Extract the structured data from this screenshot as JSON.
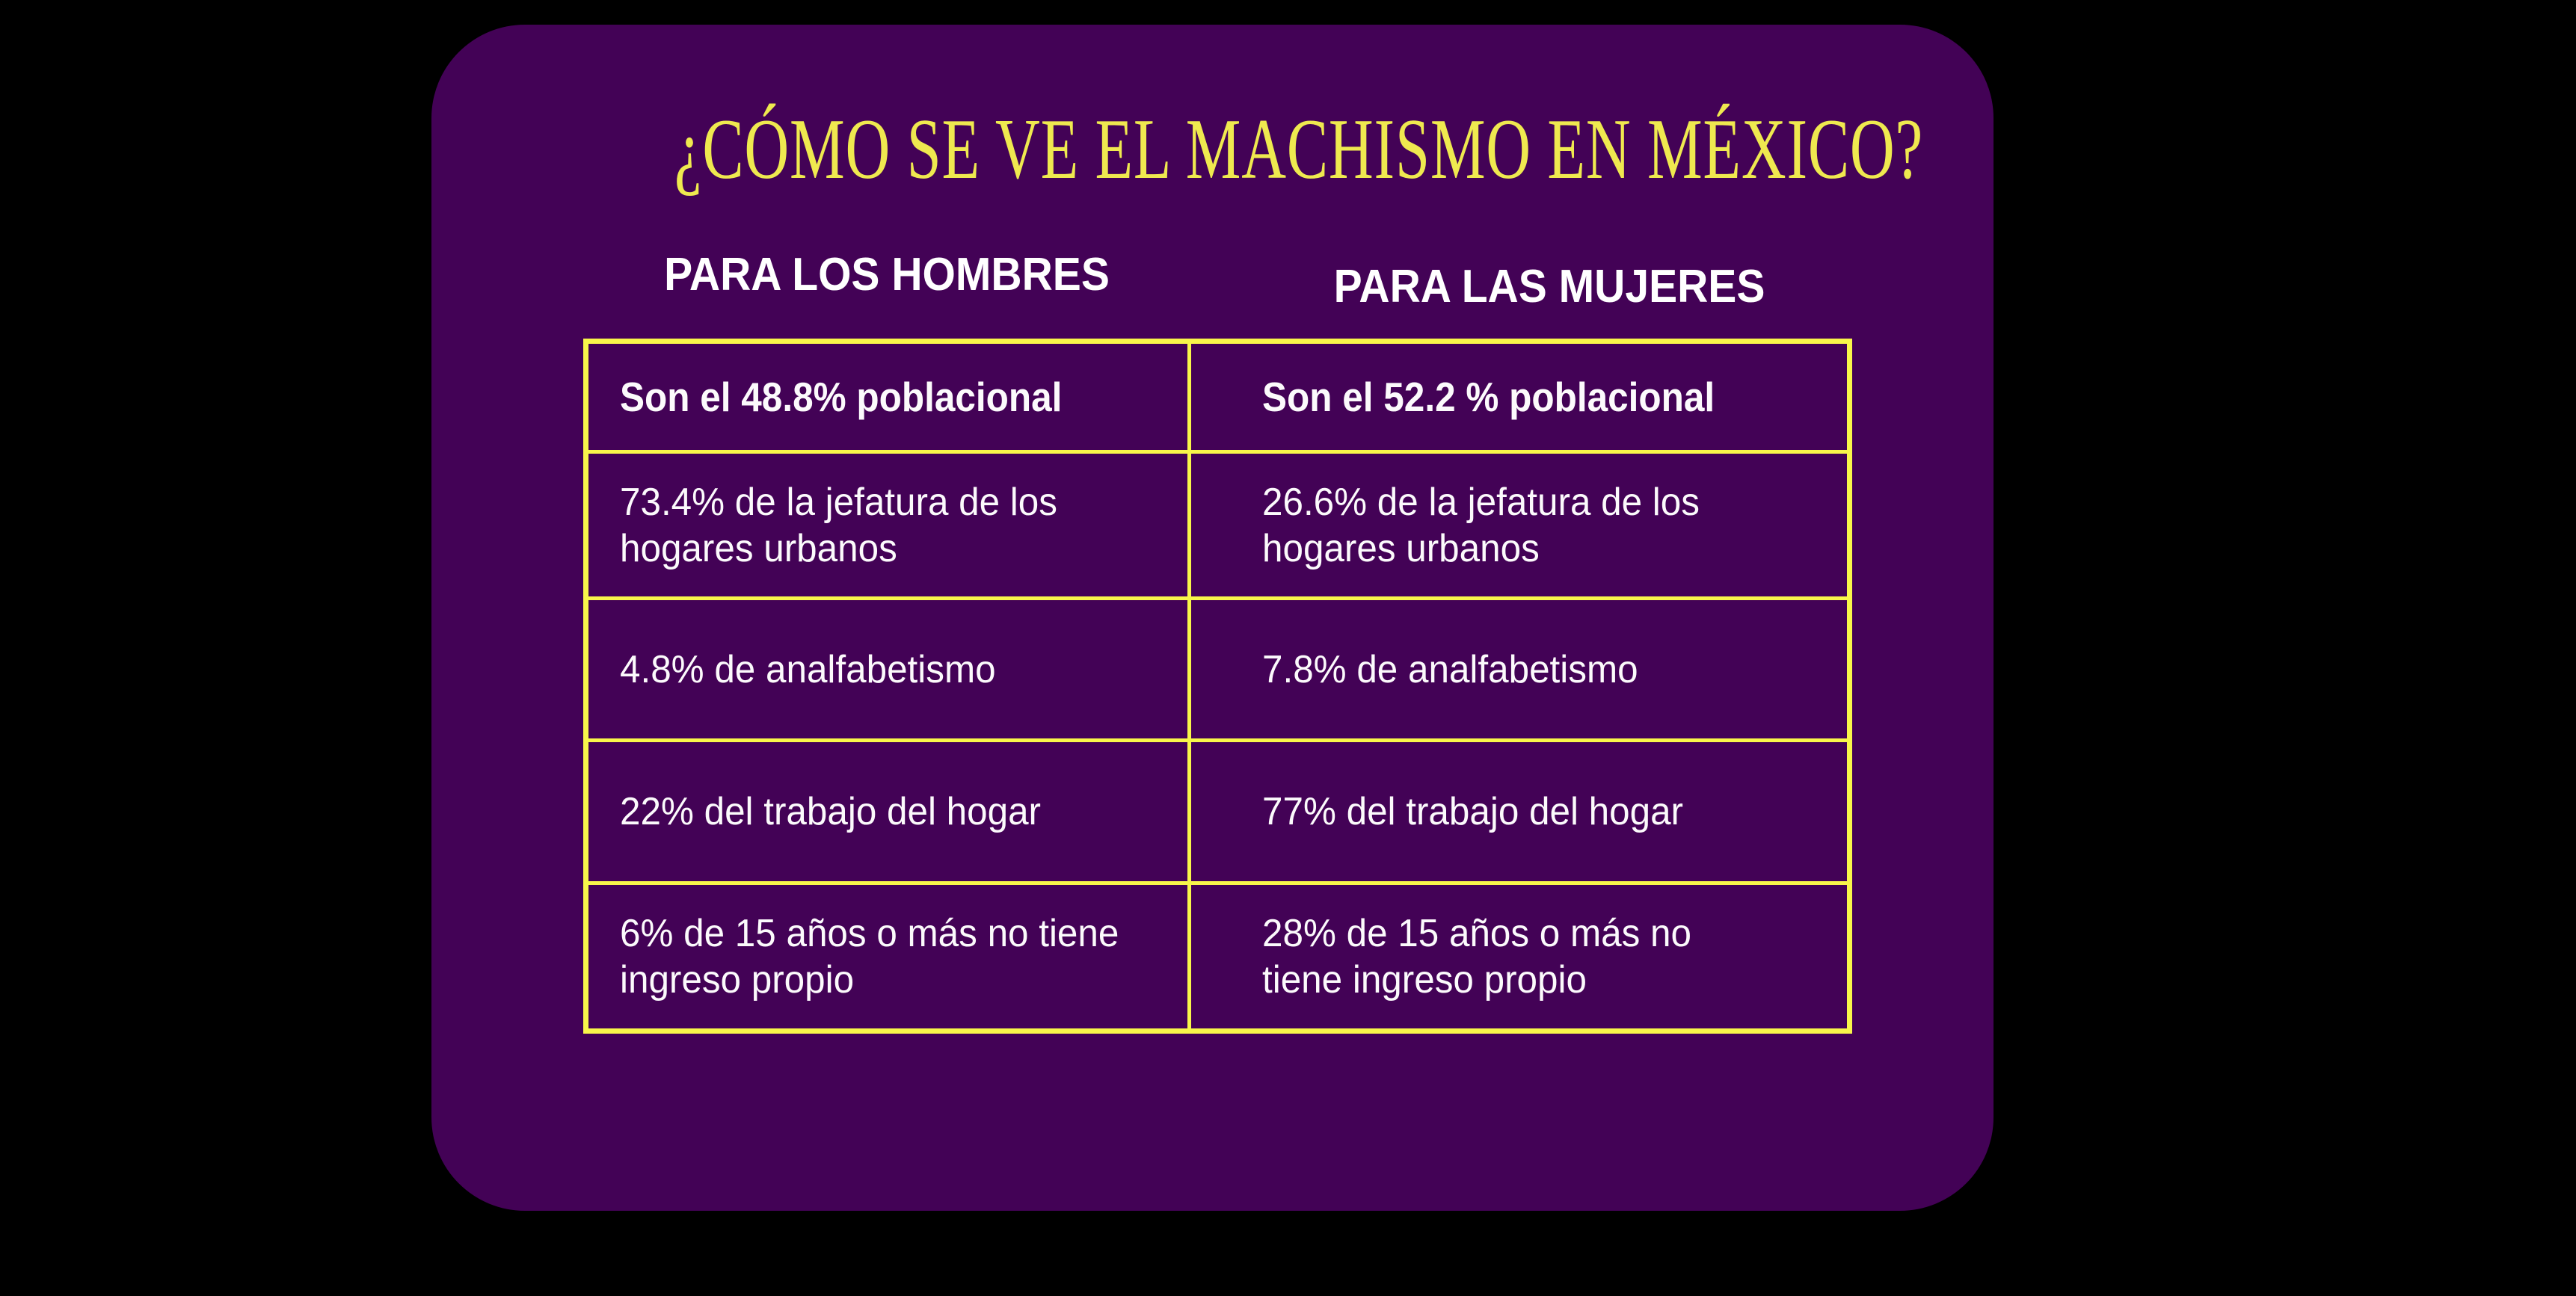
{
  "title": "¿CÓMO SE VE EL MACHISMO EN MÉXICO?",
  "columns": {
    "hombres_header": "PARA LOS HOMBRES",
    "mujeres_header": "PARA LAS MUJERES"
  },
  "rows": {
    "poblacional": {
      "hombres": "Son el 48.8% poblacional",
      "mujeres": "Son el 52.2 % poblacional"
    },
    "jefatura": {
      "hombres": "73.4% de la jefatura de los\nhogares urbanos",
      "mujeres": "26.6% de la jefatura de los\nhogares urbanos"
    },
    "analfabetismo": {
      "hombres": "4.8% de analfabetismo",
      "mujeres": "7.8% de analfabetismo"
    },
    "trabajo_hogar": {
      "hombres": "22% del trabajo del hogar",
      "mujeres": "77% del trabajo del hogar"
    },
    "ingreso": {
      "hombres": "6% de 15 años o más no tiene\ningreso propio",
      "mujeres": "28% de 15 años o más no\ntiene ingreso propio"
    }
  },
  "colors": {
    "background": "#000000",
    "card": "#430256",
    "title_text": "#EFE94F",
    "table_border": "#F8F64A",
    "body_text": "#FCFAFC"
  },
  "chart_data": {
    "type": "table",
    "title": "¿CÓMO SE VE EL MACHISMO EN MÉXICO?",
    "columns": [
      "PARA LOS HOMBRES",
      "PARA LAS MUJERES"
    ],
    "rows": [
      [
        "Son el 48.8% poblacional",
        "Son el 52.2 % poblacional"
      ],
      [
        "73.4% de la jefatura de los hogares urbanos",
        "26.6% de la jefatura de los hogares urbanos"
      ],
      [
        "4.8% de analfabetismo",
        "7.8% de analfabetismo"
      ],
      [
        "22% del trabajo del hogar",
        "77% del trabajo del hogar"
      ],
      [
        "6% de 15 años o más no tiene ingreso propio",
        "28% de 15 años o más no tiene ingreso propio"
      ]
    ]
  }
}
